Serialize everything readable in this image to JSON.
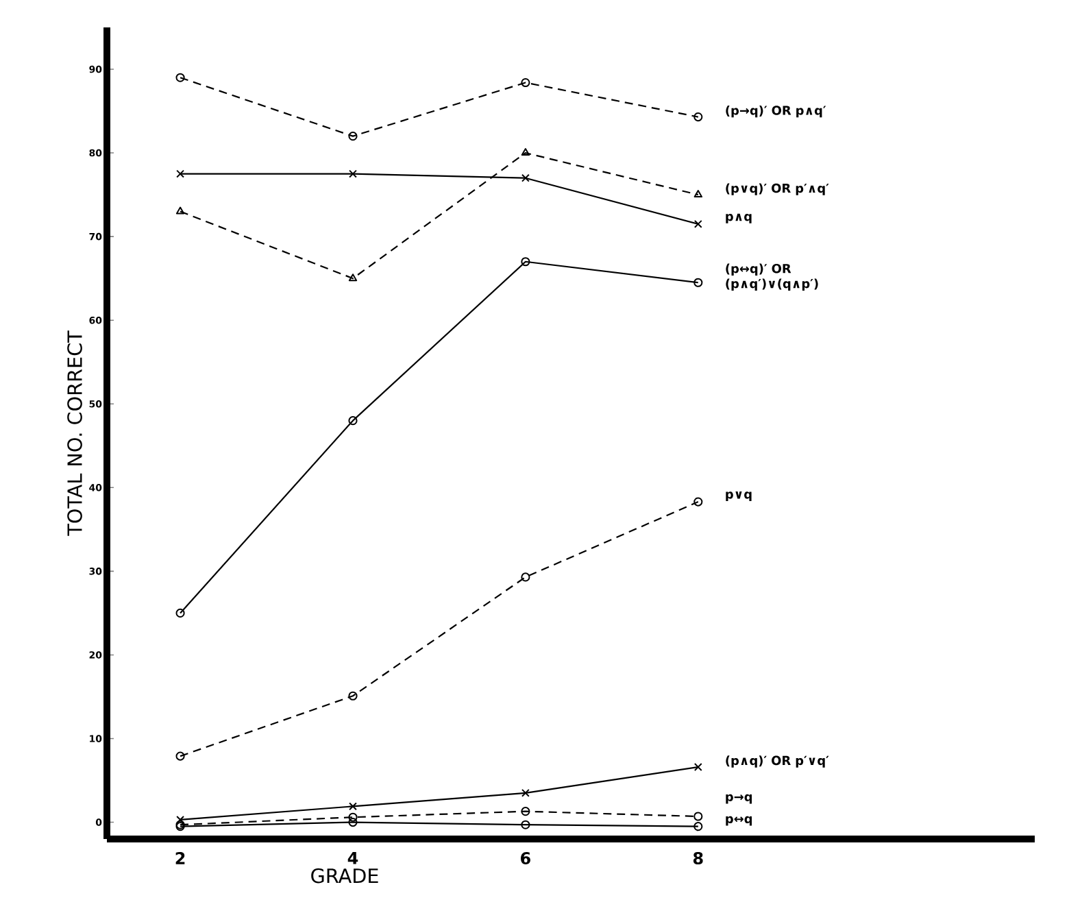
{
  "chart_data": {
    "type": "line",
    "xlabel": "GRADE",
    "ylabel": "TOTAL NO. CORRECT",
    "x": [
      2,
      4,
      6,
      8
    ],
    "xlim": [
      1.15,
      11.9
    ],
    "xticks": [
      2,
      4,
      6,
      8
    ],
    "ylim": [
      -2,
      95
    ],
    "yticks": [
      0,
      10,
      20,
      30,
      40,
      50,
      60,
      70,
      80,
      90
    ],
    "series": [
      {
        "name": "(p→q)′ OR p∧q′",
        "color": "#000000",
        "line_style": "dashed",
        "marker": "circle",
        "values": [
          89,
          82,
          88.4,
          84.3
        ]
      },
      {
        "name": "(p∨q)′ OR p′∧q′",
        "color": "#000000",
        "line_style": "dashed",
        "marker": "triangle",
        "values": [
          73,
          65,
          80,
          75
        ]
      },
      {
        "name": "p∧q",
        "color": "#000000",
        "line_style": "solid",
        "marker": "cross",
        "values": [
          77.5,
          77.5,
          77,
          71.5
        ]
      },
      {
        "name": "(p↔q)′ OR (p∧q′)∨(q∧p′)",
        "color": "#000000",
        "line_style": "solid",
        "marker": "circle",
        "values": [
          25,
          48,
          67,
          64.5
        ]
      },
      {
        "name": "p∨q",
        "color": "#000000",
        "line_style": "dashed",
        "marker": "circle",
        "values": [
          7.9,
          15.1,
          29.3,
          38.3
        ]
      },
      {
        "name": "(p∧q)′ OR p′∨q′",
        "color": "#000000",
        "line_style": "solid",
        "marker": "cross",
        "values": [
          0.3,
          1.9,
          3.5,
          6.6
        ]
      },
      {
        "name": "p→q",
        "color": "#000000",
        "line_style": "dashed",
        "marker": "circle",
        "values": [
          -0.3,
          0.6,
          1.3,
          0.7
        ]
      },
      {
        "name": "p↔q",
        "color": "#000000",
        "line_style": "solid",
        "marker": "circle",
        "values": [
          -0.5,
          0,
          -0.3,
          -0.5
        ]
      }
    ]
  }
}
